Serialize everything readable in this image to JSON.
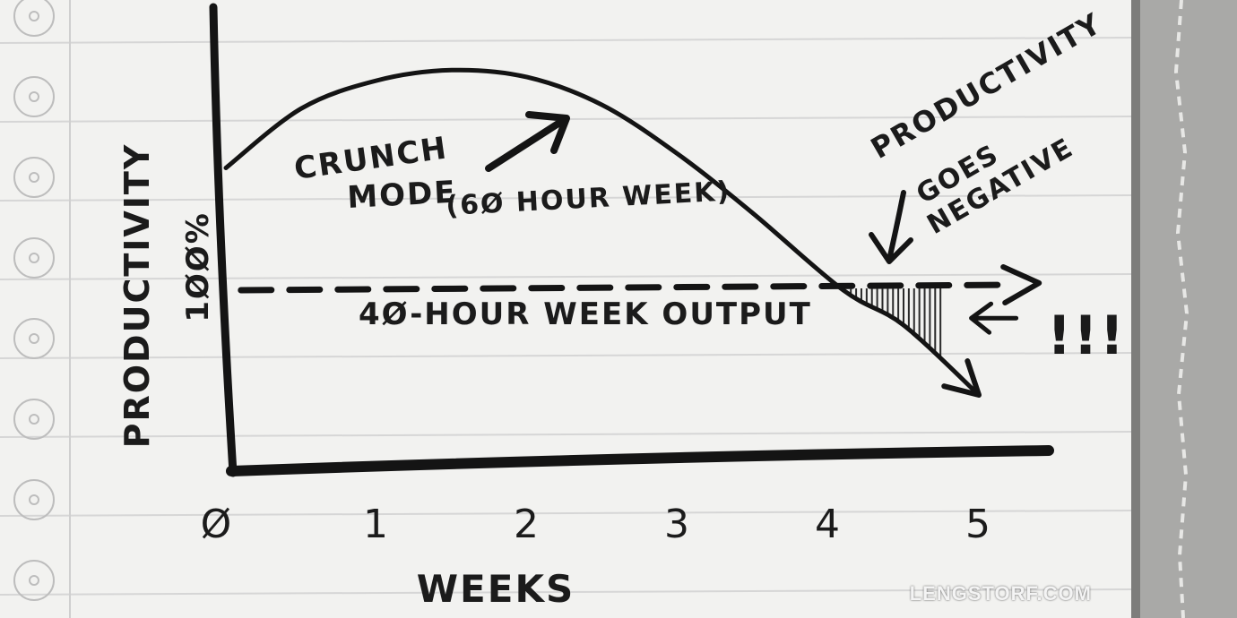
{
  "chart_data": {
    "type": "line",
    "xlabel": "WEEKS",
    "ylabel": "PRODUCTIVITY",
    "x_ticks": [
      "Ø",
      "1",
      "2",
      "3",
      "4",
      "5"
    ],
    "xlim": [
      0,
      5.4
    ],
    "baseline": {
      "label": "4Ø-HOUR WEEK OUTPUT",
      "level_label": "1ØØ%",
      "value": 100
    },
    "series": [
      {
        "name": "CRUNCH MODE (6Ø HOUR WEEK)",
        "x": [
          0,
          0.5,
          1,
          1.5,
          2,
          2.5,
          3,
          3.5,
          4.1,
          4.5,
          5.0
        ],
        "values": [
          135,
          152,
          160,
          163,
          161,
          153,
          139,
          122,
          100,
          90,
          70
        ]
      }
    ],
    "annotations": {
      "crunch": [
        "CRUNCH",
        "MODE",
        "(6Ø HOUR WEEK)"
      ],
      "negative": [
        "PRODUCTIVITY",
        "GOES",
        "NEGATIVE"
      ],
      "exclaim": "!!!"
    },
    "grid": false
  },
  "watermark": "LENGSTORF.COM"
}
